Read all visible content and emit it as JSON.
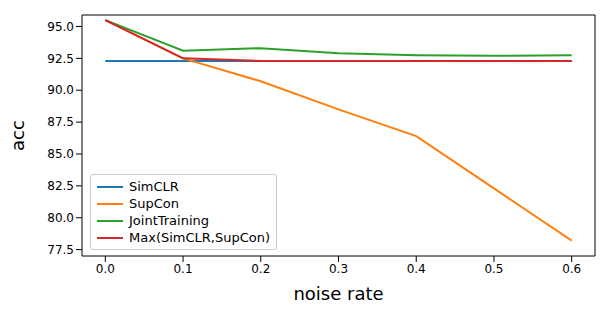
{
  "chart_data": {
    "type": "line",
    "x_label": "noise rate",
    "y_label": "acc",
    "x": [
      0.0,
      0.1,
      0.2,
      0.3,
      0.4,
      0.5,
      0.6
    ],
    "series": [
      {
        "name": "SimCLR",
        "color": "#1f77b4",
        "values": [
          92.3,
          92.3,
          92.3,
          92.3,
          92.3,
          92.3,
          92.3
        ]
      },
      {
        "name": "SupCon",
        "color": "#ff7f0e",
        "values": [
          95.5,
          92.5,
          90.7,
          88.5,
          86.4,
          82.3,
          78.2
        ]
      },
      {
        "name": "JointTraining",
        "color": "#2ca02c",
        "values": [
          95.5,
          93.1,
          93.3,
          92.9,
          92.75,
          92.7,
          92.75
        ]
      },
      {
        "name": "Max(SimCLR,SupCon)",
        "color": "#d62728",
        "values": [
          95.5,
          92.5,
          92.3,
          92.3,
          92.3,
          92.3,
          92.3
        ]
      }
    ],
    "xlim": [
      -0.03,
      0.63
    ],
    "ylim": [
      77.0,
      95.9
    ],
    "xticks": [
      {
        "value": 0,
        "label": "0.0"
      },
      0.1,
      0.2,
      0.3,
      0.4,
      0.5,
      0.6
    ],
    "yticks": [
      77.5,
      {
        "value": 80,
        "label": "80.0"
      },
      82.5,
      {
        "value": 85,
        "label": "85.0"
      },
      87.5,
      {
        "value": 90,
        "label": "90.0"
      },
      92.5,
      {
        "value": 95,
        "label": "95.0"
      }
    ],
    "legend": "lower left"
  }
}
